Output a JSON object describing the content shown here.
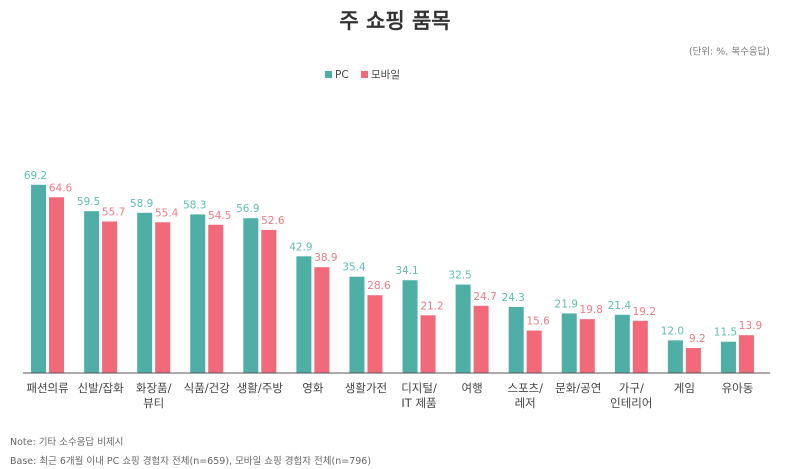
{
  "chart_data": {
    "type": "bar",
    "title": "주 쇼핑 품목",
    "subtitle": "(단위: %, 복수응답)",
    "categories": [
      "패션의류",
      "신발/잡화",
      "화장품/\n뷰티",
      "식품/건강",
      "생활/주방",
      "영화",
      "생활가전",
      "디지털/\nIT 제품",
      "여행",
      "스포츠/\n레저",
      "문화/공연",
      "가구/\n인테리어",
      "게임",
      "유아동"
    ],
    "series": [
      {
        "name": "PC",
        "color": "#4fafa6",
        "label_color": "#5fbcb2",
        "values": [
          69.2,
          59.5,
          58.9,
          58.3,
          56.9,
          42.9,
          35.4,
          34.1,
          32.5,
          24.3,
          21.9,
          21.4,
          12.0,
          11.5
        ],
        "value_labels": [
          "69.2",
          "59.5",
          "58.9",
          "58.3",
          "56.9",
          "42.9",
          "35.4",
          "34.1",
          "32.5",
          "24.3",
          "21.9",
          "21.4",
          "12.0",
          "11.5"
        ]
      },
      {
        "name": "모바일",
        "color": "#f2697a",
        "label_color": "#f07a86",
        "values": [
          64.6,
          55.7,
          55.4,
          54.5,
          52.6,
          38.9,
          28.6,
          21.2,
          24.7,
          15.6,
          19.8,
          19.2,
          9.2,
          13.9
        ]
      }
    ],
    "ylim": [
      0,
      75
    ],
    "legend": "top",
    "notes": [
      "Note: 기타 소수응답 비제시",
      "Base: 최근 6개월 이내 PC 쇼핑 경험자 전체(n=659), 모바일 쇼핑 경험자 전체(n=796)"
    ]
  }
}
